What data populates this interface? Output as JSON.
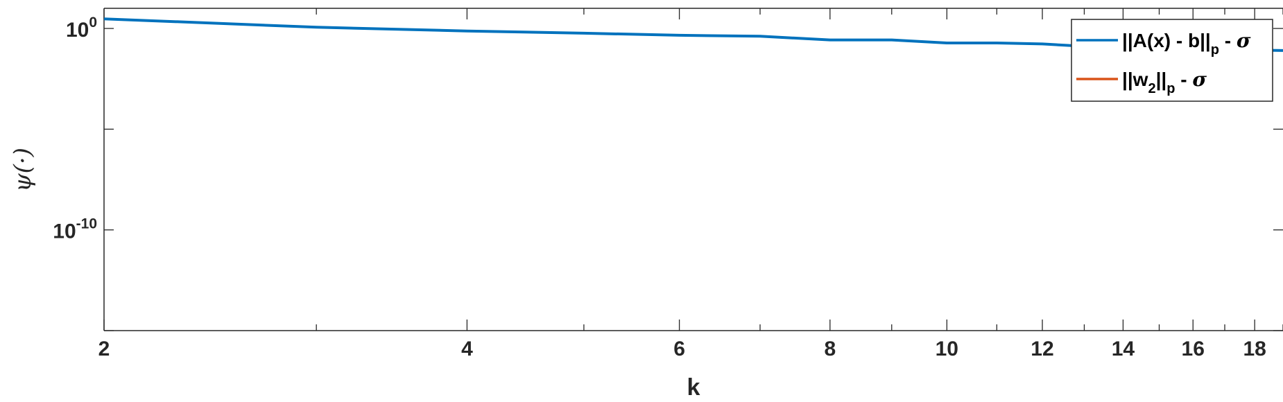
{
  "chart_data": {
    "type": "line",
    "xlabel": "k",
    "ylabel": "ψ(·)",
    "x_scale": "log",
    "y_scale": "log",
    "xlim": [
      2,
      19
    ],
    "ylim": [
      1e-15,
      10.0
    ],
    "x_ticks": [
      {
        "value": 2,
        "label": "2"
      },
      {
        "value": 4,
        "label": "4"
      },
      {
        "value": 6,
        "label": "6"
      },
      {
        "value": 8,
        "label": "8"
      },
      {
        "value": 10,
        "label": "10"
      },
      {
        "value": 12,
        "label": "12"
      },
      {
        "value": 14,
        "label": "14"
      },
      {
        "value": 16,
        "label": "16"
      },
      {
        "value": 18,
        "label": "18"
      }
    ],
    "y_ticks": [
      {
        "value": 1,
        "base": "10",
        "exp": "0"
      },
      {
        "value": 1e-10,
        "base": "10",
        "exp": "-10"
      }
    ],
    "grid": false,
    "legend_position": "top-right",
    "series": [
      {
        "name_parts": {
          "prefix": "||A(x) - b||",
          "sub": "p",
          "suffix": " - ",
          "sigma": "σ"
        },
        "color": "#0072BD",
        "x": [
          2,
          3,
          4,
          5,
          6,
          7,
          8,
          9,
          10,
          11,
          12,
          13,
          14,
          15,
          16,
          17,
          18,
          19
        ],
        "y": [
          3.0,
          1.15,
          0.75,
          0.58,
          0.46,
          0.41,
          0.27,
          0.27,
          0.19,
          0.19,
          0.17,
          0.13,
          0.12,
          0.11,
          0.1,
          0.09,
          0.085,
          0.08
        ]
      },
      {
        "name_parts": {
          "prefix": "||w",
          "sub_mid": "2",
          "mid": "||",
          "sub": "p",
          "suffix": " - ",
          "sigma": "σ"
        },
        "color": "#D95319",
        "x": [],
        "y": []
      }
    ]
  }
}
